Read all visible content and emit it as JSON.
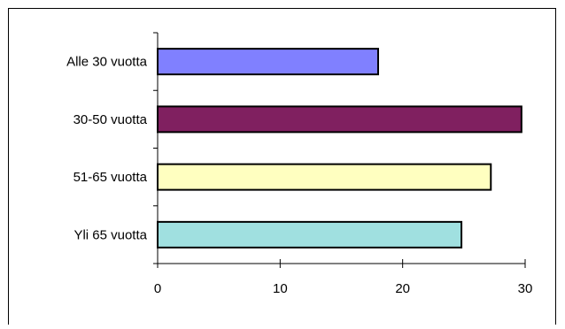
{
  "chart_data": {
    "type": "bar",
    "orientation": "horizontal",
    "categories": [
      "Alle 30 vuotta",
      "30-50 vuotta",
      "51-65 vuotta",
      "Yli 65 vuotta"
    ],
    "values": [
      18,
      29.7,
      27.2,
      24.8
    ],
    "colors": [
      "#8080ff",
      "#802060",
      "#ffffc0",
      "#a0e0e0"
    ],
    "xlim": [
      0,
      30
    ],
    "xticks": [
      0,
      10,
      20,
      30
    ],
    "grid": false,
    "legend": "none"
  }
}
